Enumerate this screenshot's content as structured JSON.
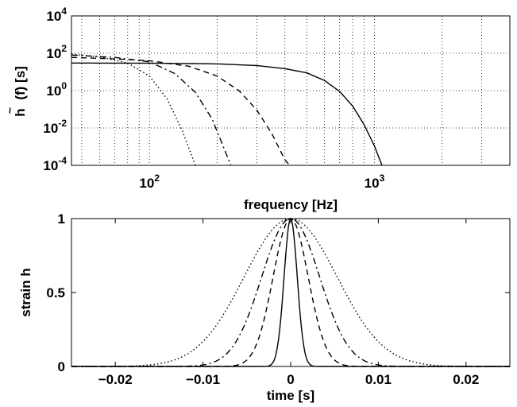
{
  "chart_data": [
    {
      "type": "line",
      "xlabel": "frequency [Hz]",
      "ylabel_main": "h",
      "ylabel_rest": "(f) [s]",
      "x_scale": "log",
      "y_scale": "log",
      "xlim": [
        45,
        4000
      ],
      "ylim": [
        0.0001,
        10000
      ],
      "grid": true,
      "x_ticks": [
        {
          "value": 100,
          "base": "10",
          "exp": "2"
        },
        {
          "value": 1000,
          "base": "10",
          "exp": "3"
        }
      ],
      "y_ticks": [
        {
          "value": 0.0001,
          "base": "10",
          "exp": "-4"
        },
        {
          "value": 0.01,
          "base": "10",
          "exp": "-2"
        },
        {
          "value": 1,
          "base": "10",
          "exp": "0"
        },
        {
          "value": 100,
          "base": "10",
          "exp": "2"
        },
        {
          "value": 10000,
          "base": "10",
          "exp": "4"
        }
      ],
      "series": [
        {
          "style": "solid",
          "x": [
            45,
            100,
            200,
            300,
            400,
            500,
            600,
            700,
            800,
            900,
            1000,
            1080
          ],
          "y": [
            30,
            29.5,
            27,
            22,
            15,
            9,
            3.5,
            0.9,
            0.15,
            0.015,
            0.0011,
            0.0001
          ]
        },
        {
          "style": "dashed",
          "x": [
            45,
            70,
            100,
            150,
            200,
            250,
            300,
            350,
            400,
            420
          ],
          "y": [
            60,
            50,
            40,
            20,
            6,
            1,
            0.09,
            0.005,
            0.0002,
            0.0001
          ]
        },
        {
          "style": "dashdot",
          "x": [
            45,
            70,
            100,
            130,
            160,
            190,
            210,
            230
          ],
          "y": [
            80,
            60,
            35,
            8,
            0.8,
            0.03,
            0.0015,
            0.0001
          ]
        },
        {
          "style": "dotted",
          "x": [
            45,
            60,
            80,
            100,
            120,
            140,
            160
          ],
          "y": [
            90,
            65,
            30,
            6,
            0.35,
            0.007,
            0.0001
          ]
        }
      ]
    },
    {
      "type": "line",
      "xlabel": "time [s]",
      "ylabel": "strain h",
      "xlim": [
        -0.025,
        0.025
      ],
      "ylim": [
        0,
        1
      ],
      "grid": false,
      "x_ticks": [
        {
          "value": -0.02,
          "label": "−0.02"
        },
        {
          "value": -0.01,
          "label": "−0.01"
        },
        {
          "value": 0,
          "label": "0"
        },
        {
          "value": 0.01,
          "label": "0.01"
        },
        {
          "value": 0.02,
          "label": "0.02"
        }
      ],
      "y_ticks": [
        {
          "value": 0,
          "label": "0"
        },
        {
          "value": 0.5,
          "label": "0.5"
        },
        {
          "value": 1,
          "label": "1"
        }
      ],
      "series": [
        {
          "style": "solid",
          "sigma": 0.00075
        },
        {
          "style": "dashed",
          "sigma": 0.002
        },
        {
          "style": "dashdot",
          "sigma": 0.0033
        },
        {
          "style": "dotted",
          "sigma": 0.0053
        }
      ]
    }
  ]
}
